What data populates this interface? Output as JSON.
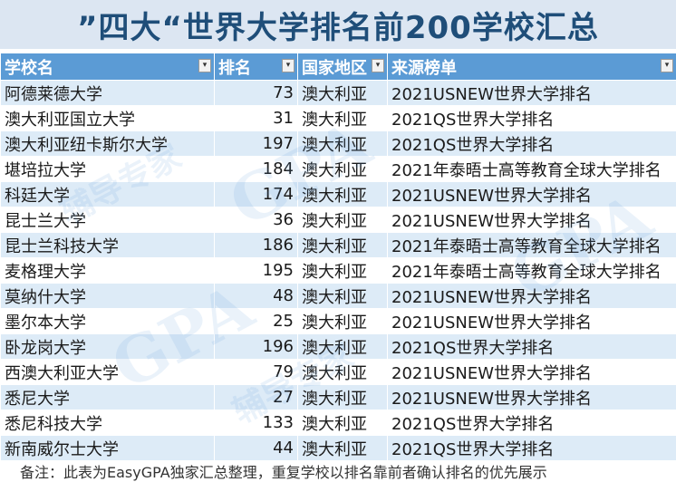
{
  "title": "”四大“世界大学排名前200学校汇总",
  "columns": [
    {
      "label": "学校名",
      "filter": "▾"
    },
    {
      "label": "排名",
      "filter": "▾"
    },
    {
      "label": "国家地区",
      "filter": "▾"
    },
    {
      "label": "来源榜单",
      "filter": "▾"
    }
  ],
  "rows": [
    {
      "name": "阿德莱德大学",
      "rank": "73",
      "country": "澳大利亚",
      "source": "2021USNEW世界大学排名"
    },
    {
      "name": "澳大利亚国立大学",
      "rank": "31",
      "country": "澳大利亚",
      "source": "2021QS世界大学排名"
    },
    {
      "name": "澳大利亚纽卡斯尔大学",
      "rank": "197",
      "country": "澳大利亚",
      "source": "2021QS世界大学排名"
    },
    {
      "name": "堪培拉大学",
      "rank": "184",
      "country": "澳大利亚",
      "source": "2021年泰晤士高等教育全球大学排名"
    },
    {
      "name": "科廷大学",
      "rank": "174",
      "country": "澳大利亚",
      "source": "2021USNEW世界大学排名"
    },
    {
      "name": "昆士兰大学",
      "rank": "36",
      "country": "澳大利亚",
      "source": "2021USNEW世界大学排名"
    },
    {
      "name": "昆士兰科技大学",
      "rank": "186",
      "country": "澳大利亚",
      "source": "2021年泰晤士高等教育全球大学排名"
    },
    {
      "name": "麦格理大学",
      "rank": "195",
      "country": "澳大利亚",
      "source": "2021年泰晤士高等教育全球大学排名"
    },
    {
      "name": "莫纳什大学",
      "rank": "48",
      "country": "澳大利亚",
      "source": "2021USNEW世界大学排名"
    },
    {
      "name": "墨尔本大学",
      "rank": "25",
      "country": "澳大利亚",
      "source": "2021USNEW世界大学排名"
    },
    {
      "name": "卧龙岗大学",
      "rank": "196",
      "country": "澳大利亚",
      "source": "2021QS世界大学排名"
    },
    {
      "name": "西澳大利亚大学",
      "rank": "79",
      "country": "澳大利亚",
      "source": "2021USNEW世界大学排名"
    },
    {
      "name": "悉尼大学",
      "rank": "27",
      "country": "澳大利亚",
      "source": "2021USNEW世界大学排名"
    },
    {
      "name": "悉尼科技大学",
      "rank": "133",
      "country": "澳大利亚",
      "source": "2021QS世界大学排名"
    },
    {
      "name": "新南威尔士大学",
      "rank": "44",
      "country": "澳大利亚",
      "source": "2021QS世界大学排名"
    }
  ],
  "note": "备注：此表为EasyGPA独家汇总整理，重复学校以排名靠前者确认排名的优先展示",
  "watermark": {
    "logo": "GPA",
    "tagline": "辅导专家"
  },
  "colors": {
    "header_bg": "#5b9bd5",
    "band": "#ddebf7",
    "title_bg": "#dce6f2",
    "title_text": "#1f4e79"
  }
}
